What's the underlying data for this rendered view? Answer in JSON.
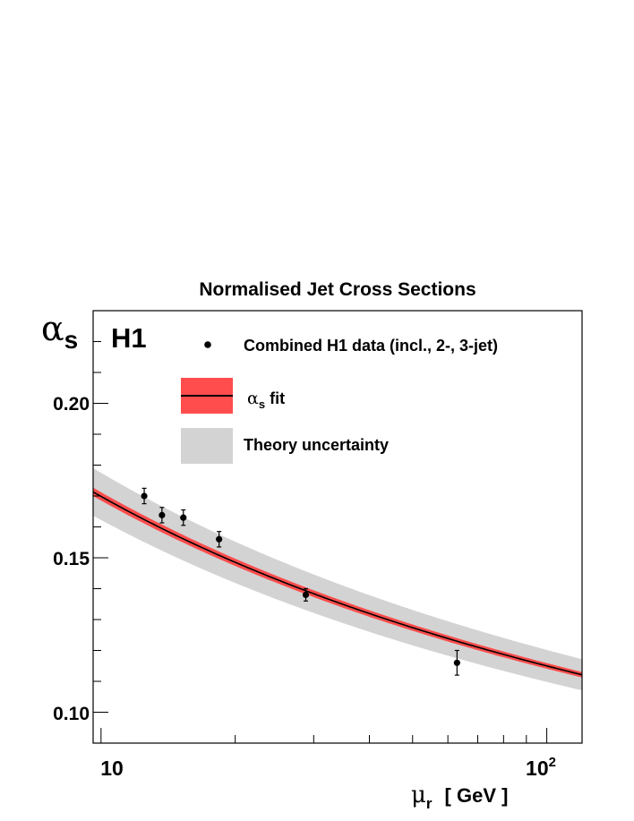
{
  "chart_data": {
    "type": "scatter",
    "title": "Normalised Jet Cross Sections",
    "experiment_label": "H1",
    "ylabel": {
      "symbol": "α",
      "sub": "s"
    },
    "xlabel": {
      "symbol": "μ",
      "sub": "r",
      "unit": "[ GeV ]"
    },
    "x_scale": "log",
    "xlim": [
      9.6,
      120
    ],
    "ylim": [
      0.09,
      0.23
    ],
    "x_tick_labels": [
      {
        "value": 10,
        "base": "10",
        "exp": ""
      },
      {
        "value": 100,
        "base": "10",
        "exp": "2"
      }
    ],
    "y_tick_labels": [
      {
        "value": 0.1,
        "text": "0.10"
      },
      {
        "value": 0.15,
        "text": "0.15"
      },
      {
        "value": 0.2,
        "text": "0.20"
      }
    ],
    "legend": [
      {
        "type": "marker",
        "text": "Combined H1 data (incl., 2-, 3-jet)"
      },
      {
        "type": "fit",
        "symbol": "α",
        "sub": "s",
        "text": " fit"
      },
      {
        "type": "band",
        "text": "Theory uncertainty"
      }
    ],
    "data_points": [
      {
        "x": 12.5,
        "y": 0.17,
        "err": 0.0025
      },
      {
        "x": 13.7,
        "y": 0.1638,
        "err": 0.0025
      },
      {
        "x": 15.3,
        "y": 0.163,
        "err": 0.0025
      },
      {
        "x": 18.4,
        "y": 0.156,
        "err": 0.0025
      },
      {
        "x": 28.8,
        "y": 0.138,
        "err": 0.002
      },
      {
        "x": 62.9,
        "y": 0.116,
        "err": 0.004
      }
    ],
    "fit_alpha_s_mz": 0.1165,
    "fit_relative_error": 0.008,
    "theory_relative_uncertainty": 0.045,
    "mz": 91.19,
    "colors": {
      "fit_band": "#ff4d4d",
      "theory_band": "#d3d3d3",
      "line": "#000000",
      "points": "#000000"
    }
  }
}
